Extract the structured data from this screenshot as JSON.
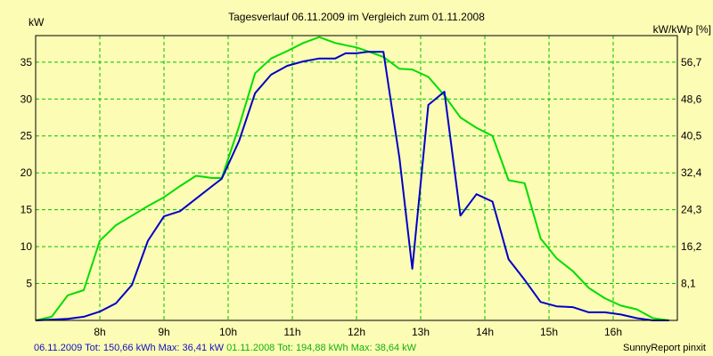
{
  "chart_data": {
    "type": "line",
    "title": "Tagesverlauf 06.11.2009 im Vergleich zum 01.11.2008",
    "ylabel_left": "kW",
    "ylabel_right": "kW/kWp [%]",
    "xlim": [
      7.0,
      17.0
    ],
    "ylim": [
      0,
      38.6
    ],
    "x_ticks": [
      8,
      9,
      10,
      11,
      12,
      13,
      14,
      15,
      16
    ],
    "x_tick_labels": [
      "8h",
      "9h",
      "10h",
      "11h",
      "12h",
      "13h",
      "14h",
      "15h",
      "16h"
    ],
    "y_ticks": [
      5,
      10,
      15,
      20,
      25,
      30,
      35
    ],
    "y_tick_labels": [
      "5",
      "10",
      "15",
      "20",
      "25",
      "30",
      "35"
    ],
    "y2_tick_labels": [
      "8,1",
      "16,2",
      "24,3",
      "32,4",
      "40,5",
      "48,6",
      "56,7"
    ],
    "grid": true,
    "series": [
      {
        "name": "06.11.2009",
        "color": "#0000c8",
        "x": [
          7.0,
          7.5,
          7.75,
          8.0,
          8.25,
          8.5,
          8.75,
          9.0,
          9.25,
          9.5,
          9.75,
          9.9,
          10.17,
          10.42,
          10.67,
          10.92,
          11.17,
          11.42,
          11.67,
          11.83,
          12.0,
          12.17,
          12.42,
          12.67,
          12.87,
          13.12,
          13.37,
          13.62,
          13.87,
          14.12,
          14.37,
          14.62,
          14.87,
          15.12,
          15.37,
          15.62,
          15.87,
          16.12,
          16.37,
          16.62,
          16.87
        ],
        "y": [
          0,
          0.2,
          0.5,
          1.2,
          2.3,
          4.8,
          10.8,
          14.1,
          14.8,
          16.5,
          18.2,
          19.2,
          24.3,
          30.8,
          33.3,
          34.5,
          35.1,
          35.5,
          35.5,
          36.2,
          36.2,
          36.4,
          36.4,
          22.0,
          7.0,
          29.2,
          31.0,
          14.2,
          17.1,
          16.1,
          8.3,
          5.5,
          2.5,
          1.9,
          1.8,
          1.1,
          1.1,
          0.8,
          0.3,
          0.0,
          0.0
        ]
      },
      {
        "name": "01.11.2008",
        "color": "#00dd00",
        "x": [
          7.0,
          7.25,
          7.5,
          7.75,
          8.0,
          8.25,
          8.5,
          8.75,
          9.0,
          9.25,
          9.5,
          9.75,
          9.9,
          10.17,
          10.42,
          10.67,
          10.92,
          11.17,
          11.42,
          11.67,
          11.83,
          12.0,
          12.17,
          12.42,
          12.67,
          12.87,
          13.12,
          13.37,
          13.62,
          13.87,
          14.12,
          14.37,
          14.62,
          14.87,
          15.12,
          15.37,
          15.62,
          15.87,
          16.12,
          16.37,
          16.62,
          16.87
        ],
        "y": [
          0,
          0.5,
          3.4,
          4.1,
          10.8,
          12.9,
          14.2,
          15.5,
          16.7,
          18.2,
          19.6,
          19.3,
          19.3,
          26.3,
          33.5,
          35.5,
          36.5,
          37.6,
          38.4,
          37.6,
          37.3,
          37.0,
          36.5,
          35.7,
          34.1,
          34.0,
          33.0,
          30.5,
          27.5,
          26.1,
          25.0,
          19.0,
          18.6,
          11.1,
          8.4,
          6.7,
          4.4,
          3.0,
          2.0,
          1.5,
          0.3,
          0.0
        ]
      }
    ]
  },
  "footer": {
    "s1_text": "06.11.2009 Tot: 150,66 kWh Max: 36,41 kW",
    "s2_text": "01.11.2008 Tot: 194,88 kWh Max: 38,64 kW",
    "brand": "SunnyReport pinxit"
  }
}
